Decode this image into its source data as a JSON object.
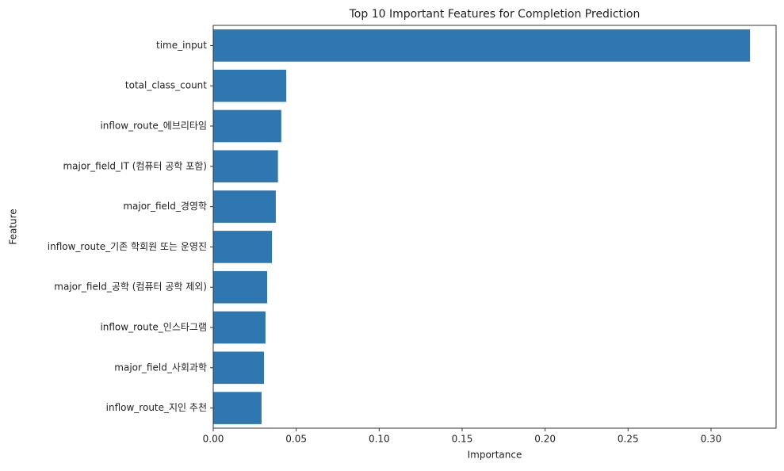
{
  "chart_data": {
    "type": "bar",
    "orientation": "horizontal",
    "title": "Top 10 Important Features for Completion Prediction",
    "x_label": "Importance",
    "y_label": "Feature",
    "categories": [
      "time_input",
      "total_class_count",
      "inflow_route_에브리타임",
      "major_field_IT (컴퓨터 공학 포함)",
      "major_field_경영학",
      "inflow_route_기존 학회원 또는 운영진",
      "major_field_공학 (컴퓨터 공학 제외)",
      "inflow_route_인스타그램",
      "major_field_사회과학",
      "inflow_route_지인 추천"
    ],
    "values": [
      0.3235,
      0.044,
      0.041,
      0.039,
      0.0377,
      0.0354,
      0.0325,
      0.0315,
      0.0306,
      0.0291
    ],
    "color": "#2e77b0",
    "xlim": [
      0,
      0.3392
    ],
    "xticks": [
      {
        "value": 0,
        "label": "0.00"
      },
      {
        "value": 0.05,
        "label": "0.05"
      },
      {
        "value": 0.1,
        "label": "0.10"
      },
      {
        "value": 0.15,
        "label": "0.15"
      },
      {
        "value": 0.2,
        "label": "0.20"
      },
      {
        "value": 0.25,
        "label": "0.25"
      },
      {
        "value": 0.3,
        "label": "0.30"
      }
    ]
  }
}
